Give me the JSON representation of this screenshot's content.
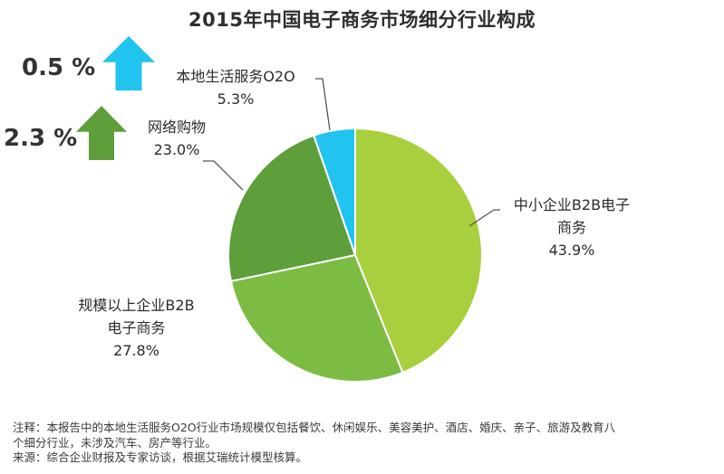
{
  "chart_data": {
    "type": "pie",
    "title": "2015年中国电子商务市场细分行业构成",
    "slices": [
      {
        "label_lines": [
          "中小企业B2B电子",
          "商务"
        ],
        "value": 43.9,
        "value_label": "43.9%",
        "color": "#a7cf3e"
      },
      {
        "label_lines": [
          "规模以上企业B2B",
          "电子商务"
        ],
        "value": 27.8,
        "value_label": "27.8%",
        "color": "#7cbc43"
      },
      {
        "label_lines": [
          "网络购物"
        ],
        "value": 23.0,
        "value_label": "23.0%",
        "color": "#5e9e3b"
      },
      {
        "label_lines": [
          "本地生活服务O2O"
        ],
        "value": 5.3,
        "value_label": "5.3%",
        "color": "#21c3ef"
      }
    ],
    "growth_indicators": [
      {
        "value_label": "0.5 %",
        "direction": "up",
        "color": "#21c3ef"
      },
      {
        "value_label": "2.3 %",
        "direction": "up",
        "color": "#5e9e3b"
      }
    ]
  },
  "footnote": {
    "line1": "注释：本报告中的本地生活服务O2O行业市场规模仅包括餐饮、休闲娱乐、美容美护、酒店、婚庆、亲子、旅游及教育八",
    "line2": "个细分行业，未涉及汽车、房产等行业。",
    "line3": "来源：综合企业财报及专家访谈，根据艾瑞统计模型核算。"
  }
}
